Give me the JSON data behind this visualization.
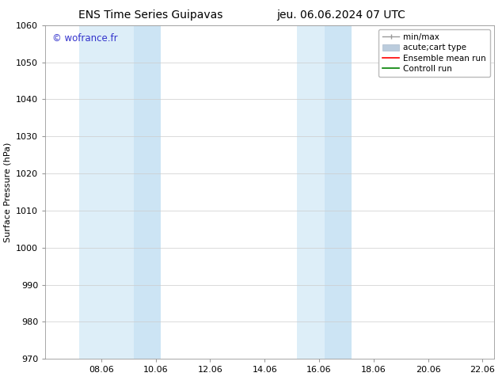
{
  "title_left": "ENS Time Series Guipavas",
  "title_right": "jeu. 06.06.2024 07 UTC",
  "ylabel": "Surface Pressure (hPa)",
  "ylim": [
    970,
    1060
  ],
  "yticks": [
    970,
    980,
    990,
    1000,
    1010,
    1020,
    1030,
    1040,
    1050,
    1060
  ],
  "xlim": [
    6.0,
    22.5
  ],
  "xticks": [
    8.06,
    10.06,
    12.06,
    14.06,
    16.06,
    18.06,
    20.06,
    22.06
  ],
  "xtick_labels": [
    "08.06",
    "10.06",
    "12.06",
    "14.06",
    "16.06",
    "18.06",
    "20.06",
    "22.06"
  ],
  "watermark": "© wofrance.fr",
  "watermark_color": "#3333cc",
  "bg_color": "#ffffff",
  "plot_bg_color": "#ffffff",
  "shaded_regions": [
    {
      "xmin": 7.25,
      "xmax": 9.25,
      "color": "#ddeef8"
    },
    {
      "xmin": 9.25,
      "xmax": 10.25,
      "color": "#cce4f4"
    },
    {
      "xmin": 15.25,
      "xmax": 16.25,
      "color": "#ddeef8"
    },
    {
      "xmin": 16.25,
      "xmax": 17.25,
      "color": "#cce4f4"
    }
  ],
  "legend_entries": [
    {
      "label": "min/max",
      "color": "#999999",
      "lw": 1.0,
      "style": "minmax"
    },
    {
      "label": "acute;cart type",
      "color": "#bbccdd",
      "lw": 8,
      "style": "thick"
    },
    {
      "label": "Ensemble mean run",
      "color": "#ff0000",
      "lw": 1.2,
      "style": "line"
    },
    {
      "label": "Controll run",
      "color": "#008000",
      "lw": 1.2,
      "style": "line"
    }
  ],
  "grid_color": "#cccccc",
  "spine_color": "#999999",
  "title_fontsize": 10,
  "label_fontsize": 8,
  "tick_fontsize": 8,
  "watermark_fontsize": 8.5,
  "legend_fontsize": 7.5
}
